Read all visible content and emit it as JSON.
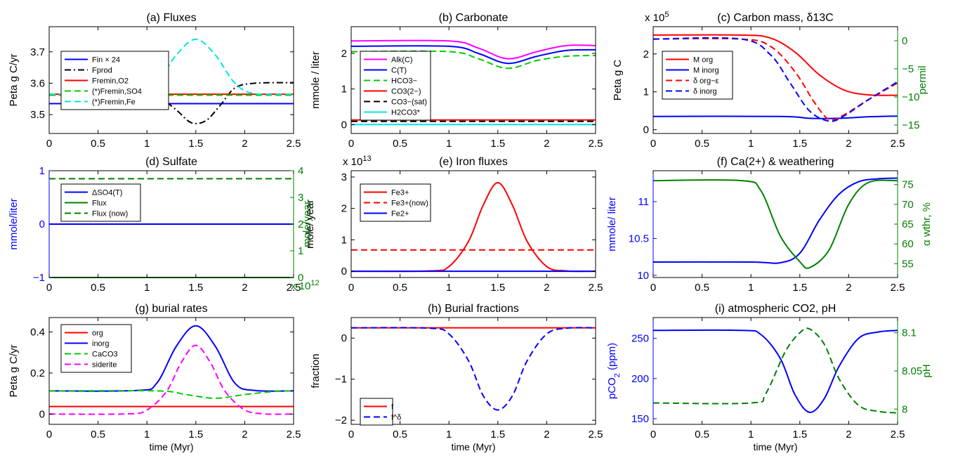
{
  "figure": {
    "xlabel": "time (Myr)",
    "xticks": [
      "0",
      "0.5",
      "1",
      "1.5",
      "2",
      "2.5"
    ]
  },
  "chart_data": [
    {
      "id": "a",
      "type": "line",
      "title": "(a) Fluxes",
      "ylabel": "Peta g C/yr",
      "xlim": [
        0,
        2.5
      ],
      "ylim": [
        3.44,
        3.78
      ],
      "yticks": [
        3.5,
        3.6,
        3.7
      ],
      "ytick_labels": [
        "3.5",
        "3.6",
        "3.7"
      ],
      "xlabel_shown": false,
      "legend_entries": [
        "Fin × 24",
        "Fprod",
        "Fremin,O2",
        "(*)Fremin,SO4",
        "(*)Fremin,Fe"
      ],
      "series": [
        {
          "name": "Fin × 24",
          "color": "#0000ff",
          "dash": "solid",
          "x": [
            0,
            2.5
          ],
          "y": [
            3.535,
            3.535
          ]
        },
        {
          "name": "Fprod",
          "color": "#000000",
          "dash": "dashdot",
          "x": [
            0,
            0.9,
            1.1,
            1.3,
            1.45,
            1.6,
            1.75,
            1.9,
            2.1,
            2.5
          ],
          "y": [
            3.565,
            3.565,
            3.56,
            3.515,
            3.475,
            3.48,
            3.53,
            3.585,
            3.6,
            3.602
          ]
        },
        {
          "name": "Fremin,O2",
          "color": "#ff0000",
          "dash": "solid",
          "x": [
            0,
            2.5
          ],
          "y": [
            3.565,
            3.565
          ]
        },
        {
          "name": "(*)Fremin,SO4",
          "color": "#00cc00",
          "dash": "dashed",
          "x": [
            0,
            2.5
          ],
          "y": [
            3.562,
            3.562
          ]
        },
        {
          "name": "(*)Fremin,Fe",
          "color": "#00e5e5",
          "dash": "dashed",
          "x": [
            0,
            0.9,
            1.1,
            1.3,
            1.5,
            1.7,
            1.9,
            2.1,
            2.5
          ],
          "y": [
            3.565,
            3.567,
            3.6,
            3.69,
            3.74,
            3.69,
            3.6,
            3.567,
            3.565
          ]
        }
      ]
    },
    {
      "id": "b",
      "type": "line",
      "title": "(b) Carbonate",
      "ylabel": "mmole / liter",
      "xlim": [
        0,
        2.5
      ],
      "ylim": [
        -0.25,
        2.75
      ],
      "yticks": [
        0,
        1,
        2
      ],
      "ytick_labels": [
        "0",
        "1",
        "2"
      ],
      "xlabel_shown": false,
      "legend_entries": [
        "Alk(C)",
        "C(T)",
        "HCO3−",
        "CO3(2−)",
        "CO3−(sat)",
        "H2CO3*"
      ],
      "series": [
        {
          "name": "Alk(C)",
          "color": "#ff00ff",
          "dash": "solid",
          "x": [
            0,
            1.0,
            1.3,
            1.6,
            1.9,
            2.2,
            2.5
          ],
          "y": [
            2.35,
            2.35,
            2.15,
            1.85,
            2.05,
            2.22,
            2.22
          ]
        },
        {
          "name": "C(T)",
          "color": "#0000ff",
          "dash": "solid",
          "x": [
            0,
            1.0,
            1.3,
            1.6,
            1.9,
            2.2,
            2.5
          ],
          "y": [
            2.2,
            2.2,
            2.0,
            1.72,
            1.92,
            2.08,
            2.1
          ]
        },
        {
          "name": "HCO3−",
          "color": "#00cc00",
          "dash": "dashed",
          "x": [
            0,
            1.0,
            1.3,
            1.6,
            1.9,
            2.2,
            2.5
          ],
          "y": [
            2.05,
            2.05,
            1.85,
            1.58,
            1.8,
            1.92,
            1.94
          ]
        },
        {
          "name": "CO3(2−)",
          "color": "#ff0000",
          "dash": "solid",
          "x": [
            0,
            2.5
          ],
          "y": [
            0.13,
            0.13
          ]
        },
        {
          "name": "CO3−(sat)",
          "color": "#000000",
          "dash": "dashed",
          "x": [
            0,
            2.5
          ],
          "y": [
            0.09,
            0.09
          ]
        },
        {
          "name": "H2CO3*",
          "color": "#00e5e5",
          "dash": "solid",
          "x": [
            0,
            2.5
          ],
          "y": [
            0.0,
            0.0
          ]
        }
      ]
    },
    {
      "id": "c",
      "type": "line",
      "title": "(c) Carbon mass, δ13C",
      "ylabel": "Peta g C",
      "ylabel_right": "permil",
      "multiplier": "x 10",
      "multiplier_exp": "5",
      "xlim": [
        0,
        2.5
      ],
      "ylim": [
        -0.1,
        2.72
      ],
      "yticks": [
        0,
        1,
        2
      ],
      "ytick_labels": [
        "0",
        "1",
        "2"
      ],
      "ylim_right": [
        -16.5,
        2.5
      ],
      "yticks_right": [
        0,
        -5,
        -10,
        -15
      ],
      "ytick_labels_right": [
        "0",
        "−5",
        "−10",
        "−15"
      ],
      "xlabel_shown": false,
      "legend_entries": [
        "M org",
        "M inorg",
        "δ org−ε",
        "δ inorg"
      ],
      "series": [
        {
          "name": "M org",
          "color": "#ff0000",
          "dash": "solid",
          "axis": "left",
          "x": [
            0,
            0.9,
            1.2,
            1.45,
            1.7,
            1.95,
            2.2,
            2.5
          ],
          "y": [
            2.5,
            2.5,
            2.42,
            2.05,
            1.45,
            1.05,
            0.92,
            0.91
          ]
        },
        {
          "name": "M inorg",
          "color": "#0000ff",
          "dash": "solid",
          "axis": "left",
          "x": [
            0,
            1.3,
            1.6,
            1.9,
            2.2,
            2.5
          ],
          "y": [
            0.35,
            0.35,
            0.3,
            0.3,
            0.34,
            0.36
          ]
        },
        {
          "name": "δ org−ε",
          "color": "#ff0000",
          "dash": "dashed",
          "axis": "right",
          "x": [
            0,
            0.9,
            1.2,
            1.45,
            1.65,
            1.8,
            1.95,
            2.2,
            2.5
          ],
          "y": [
            0.3,
            0.3,
            -1.0,
            -5.5,
            -11,
            -14.0,
            -13.2,
            -10.5,
            -7.5
          ]
        },
        {
          "name": "δ inorg",
          "color": "#0000ff",
          "dash": "dashed",
          "axis": "right",
          "x": [
            0,
            0.9,
            1.2,
            1.4,
            1.6,
            1.8,
            1.95,
            2.2,
            2.5
          ],
          "y": [
            0.3,
            0.3,
            -2.5,
            -7.5,
            -12.5,
            -14.3,
            -13.4,
            -10.5,
            -7.3
          ]
        }
      ]
    },
    {
      "id": "d",
      "type": "line",
      "title": "(d) Sulfate",
      "ylabel": "mmole/liter",
      "ylabel_right": "mole/year",
      "multiplier_right": "x 10",
      "multiplier_right_exp": "12",
      "xlim": [
        0,
        2.5
      ],
      "ylim": [
        -1,
        1
      ],
      "yticks": [
        -1,
        0,
        1
      ],
      "ytick_labels": [
        "−1",
        "0",
        "1"
      ],
      "ylim_right": [
        0,
        4
      ],
      "yticks_right": [
        0,
        1,
        2,
        3,
        4
      ],
      "ytick_labels_right": [
        "0",
        "1",
        "2",
        "3",
        "4"
      ],
      "xlabel_shown": false,
      "legend_entries": [
        "ΔSO4(T)",
        "Flux",
        "Flux (now)"
      ],
      "series": [
        {
          "name": "ΔSO4(T)",
          "color": "#0000ff",
          "dash": "solid",
          "axis": "left",
          "x": [
            0,
            2.5
          ],
          "y": [
            0,
            0
          ]
        },
        {
          "name": "Flux",
          "color": "#008000",
          "dash": "solid",
          "axis": "right",
          "x": [
            0,
            2.5
          ],
          "y": [
            0.0,
            0.0
          ]
        },
        {
          "name": "Flux (now)",
          "color": "#008000",
          "dash": "dashed",
          "axis": "right",
          "x": [
            0,
            2.5
          ],
          "y": [
            3.7,
            3.7
          ]
        }
      ]
    },
    {
      "id": "e",
      "type": "line",
      "title": "(e) Iron fluxes",
      "ylabel": "mole/ year",
      "multiplier": "x 10",
      "multiplier_exp": "13",
      "xlim": [
        0,
        2.5
      ],
      "ylim": [
        -0.2,
        3.2
      ],
      "yticks": [
        0,
        1,
        2,
        3
      ],
      "ytick_labels": [
        "0",
        "1",
        "2",
        "3"
      ],
      "xlabel_shown": false,
      "legend_entries": [
        "Fe3+",
        "Fe3+(now)",
        "Fe2+"
      ],
      "series": [
        {
          "name": "Fe3+",
          "color": "#ff0000",
          "dash": "solid",
          "x": [
            0,
            0.8,
            1.0,
            1.2,
            1.35,
            1.5,
            1.65,
            1.8,
            2.0,
            2.2,
            2.5
          ],
          "y": [
            0,
            0.01,
            0.15,
            0.95,
            2.1,
            2.82,
            2.1,
            0.95,
            0.15,
            0.01,
            0
          ]
        },
        {
          "name": "Fe3+(now)",
          "color": "#ff0000",
          "dash": "dashed",
          "x": [
            0,
            2.5
          ],
          "y": [
            0.68,
            0.68
          ]
        },
        {
          "name": "Fe2+",
          "color": "#0000ff",
          "dash": "solid",
          "x": [
            0,
            2.5
          ],
          "y": [
            0,
            0
          ]
        }
      ]
    },
    {
      "id": "f",
      "type": "line",
      "title": "(f) Ca(2+) & weathering",
      "ylabel": "mmole/ liter",
      "ylabel_right": "α wthr, %",
      "xlim": [
        0,
        2.5
      ],
      "ylim": [
        9.97,
        11.42
      ],
      "yticks": [
        10,
        10.5,
        11
      ],
      "ytick_labels": [
        "10",
        "10.5",
        "11"
      ],
      "ylim_right": [
        51.5,
        78.5
      ],
      "yticks_right": [
        55,
        60,
        65,
        70,
        75
      ],
      "ytick_labels_right": [
        "55",
        "60",
        "65",
        "70",
        "75"
      ],
      "xlabel_shown": false,
      "legend_entries": [],
      "series": [
        {
          "name": "",
          "color": "#0000ff",
          "dash": "solid",
          "axis": "left",
          "x": [
            0,
            1.0,
            1.3,
            1.5,
            1.7,
            1.9,
            2.1,
            2.3,
            2.5
          ],
          "y": [
            10.18,
            10.18,
            10.17,
            10.3,
            10.75,
            11.1,
            11.27,
            11.31,
            11.32
          ]
        },
        {
          "name": "",
          "color": "#008000",
          "dash": "solid",
          "axis": "right",
          "x": [
            0,
            0.9,
            1.1,
            1.3,
            1.5,
            1.6,
            1.8,
            2.0,
            2.2,
            2.5
          ],
          "y": [
            76,
            76,
            73.5,
            62,
            55.5,
            54,
            58.5,
            70,
            75.5,
            76
          ]
        }
      ]
    },
    {
      "id": "g",
      "type": "line",
      "title": "(g) burial rates",
      "ylabel": "Peta g C/yr",
      "xlim": [
        0,
        2.5
      ],
      "ylim": [
        -0.05,
        0.47
      ],
      "yticks": [
        0,
        0.2,
        0.4
      ],
      "ytick_labels": [
        "0",
        "0.2",
        "0.4"
      ],
      "xlabel_shown": true,
      "legend_entries": [
        "org",
        "inorg",
        "CaCO3",
        "siderite"
      ],
      "series": [
        {
          "name": "org",
          "color": "#ff0000",
          "dash": "solid",
          "x": [
            0,
            2.5
          ],
          "y": [
            0.037,
            0.037
          ]
        },
        {
          "name": "inorg",
          "color": "#0000ff",
          "dash": "solid",
          "x": [
            0,
            0.9,
            1.1,
            1.3,
            1.5,
            1.7,
            1.9,
            2.1,
            2.5
          ],
          "y": [
            0.113,
            0.115,
            0.15,
            0.33,
            0.43,
            0.33,
            0.15,
            0.115,
            0.113
          ]
        },
        {
          "name": "CaCO3",
          "color": "#00cc00",
          "dash": "dashed",
          "x": [
            0,
            1.1,
            1.4,
            1.7,
            2.0,
            2.3,
            2.5
          ],
          "y": [
            0.113,
            0.113,
            0.095,
            0.077,
            0.095,
            0.11,
            0.113
          ]
        },
        {
          "name": "siderite",
          "color": "#ff00ff",
          "dash": "dashed",
          "x": [
            0,
            0.8,
            1.0,
            1.2,
            1.35,
            1.5,
            1.65,
            1.8,
            2.0,
            2.2,
            2.5
          ],
          "y": [
            0,
            0.001,
            0.02,
            0.11,
            0.25,
            0.335,
            0.25,
            0.11,
            0.02,
            0.001,
            0
          ]
        }
      ]
    },
    {
      "id": "h",
      "type": "line",
      "title": "(h) Burial fractions",
      "ylabel": "fraction",
      "xlim": [
        0,
        2.5
      ],
      "ylim": [
        -2.1,
        0.5
      ],
      "yticks": [
        -2,
        -1,
        0
      ],
      "ytick_labels": [
        "−2",
        "−1",
        "0"
      ],
      "xlabel_shown": true,
      "legend_entries": [
        "f",
        "f^δ"
      ],
      "series": [
        {
          "name": "f",
          "color": "#ff0000",
          "dash": "solid",
          "x": [
            0,
            2.5
          ],
          "y": [
            0.25,
            0.25
          ]
        },
        {
          "name": "f^δ",
          "color": "#0000ff",
          "dash": "dashed",
          "x": [
            0,
            0.8,
            1.0,
            1.2,
            1.35,
            1.5,
            1.65,
            1.8,
            2.0,
            2.2,
            2.5
          ],
          "y": [
            0.25,
            0.24,
            0.1,
            -0.55,
            -1.4,
            -1.75,
            -1.4,
            -0.55,
            0.1,
            0.24,
            0.25
          ]
        }
      ]
    },
    {
      "id": "i",
      "type": "line",
      "title": "(i) atmospheric CO2, pH",
      "ylabel": "pCO",
      "ylabel_sub": "2",
      "ylabel_tail": " (ppm)",
      "ylabel_right": "pH",
      "xlim": [
        0,
        2.5
      ],
      "ylim": [
        143,
        276
      ],
      "yticks": [
        150,
        200,
        250
      ],
      "ytick_labels": [
        "150",
        "200",
        "250"
      ],
      "ylim_right": [
        7.98,
        8.12
      ],
      "yticks_right": [
        8,
        8.05,
        8.1
      ],
      "ytick_labels_right": [
        "8",
        "8.05",
        "8.1"
      ],
      "xlabel_shown": true,
      "legend_entries": [],
      "series": [
        {
          "name": "",
          "color": "#0000ff",
          "dash": "solid",
          "axis": "left",
          "x": [
            0,
            0.9,
            1.1,
            1.3,
            1.45,
            1.6,
            1.75,
            1.9,
            2.1,
            2.3,
            2.5
          ],
          "y": [
            260,
            260,
            255,
            225,
            180,
            158,
            175,
            215,
            250,
            258,
            260
          ]
        },
        {
          "name": "",
          "color": "#008000",
          "dash": "dashed",
          "axis": "right",
          "x": [
            0,
            1.0,
            1.15,
            1.35,
            1.5,
            1.6,
            1.75,
            1.9,
            2.1,
            2.3,
            2.5
          ],
          "y": [
            8.008,
            8.008,
            8.02,
            8.075,
            8.1,
            8.105,
            8.085,
            8.04,
            8.005,
            7.997,
            7.995
          ]
        }
      ]
    }
  ]
}
